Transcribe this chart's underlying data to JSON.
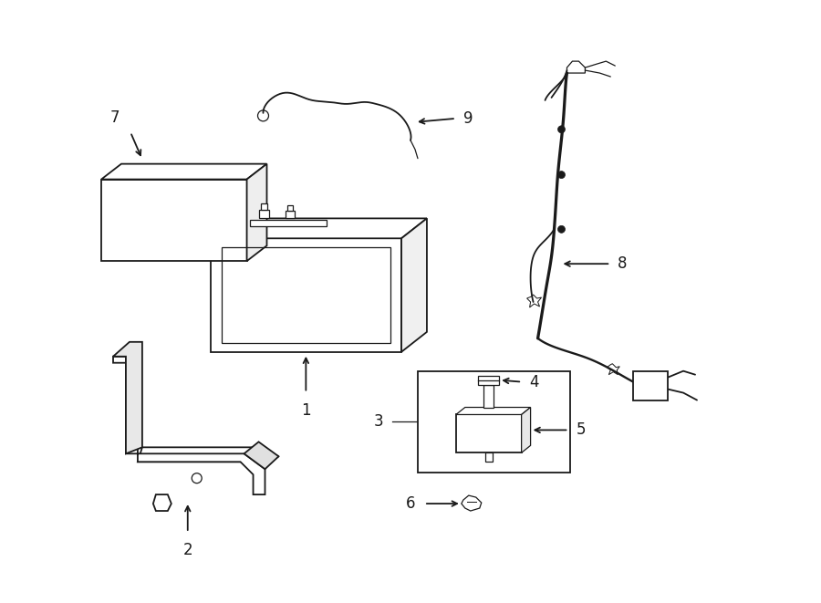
{
  "background_color": "#ffffff",
  "fig_width": 9.0,
  "fig_height": 6.61,
  "dpi": 100,
  "line_color": "#1a1a1a",
  "line_width": 1.3,
  "label_fontsize": 12,
  "thin_lw": 0.9
}
